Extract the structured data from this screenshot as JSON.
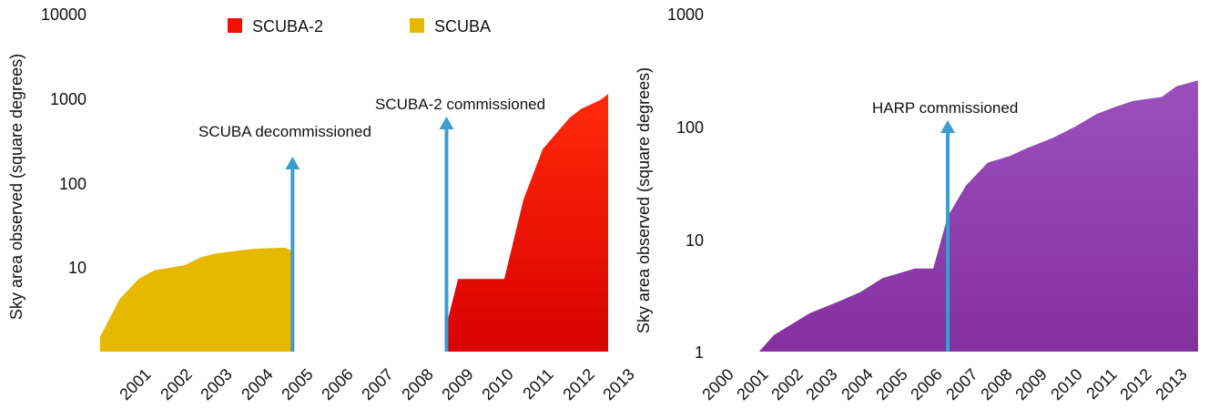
{
  "chart_data": [
    {
      "type": "area",
      "ylabel": "Sky area observed (square degrees)",
      "yscale": "log",
      "ylim": [
        1,
        10000
      ],
      "y_ticks": [
        "10",
        "100",
        "1000",
        "10000"
      ],
      "x_ticks": [
        "2001",
        "2002",
        "2003",
        "2004",
        "2005",
        "2006",
        "2007",
        "2008",
        "2009",
        "2010",
        "2011",
        "2012",
        "2013"
      ],
      "grid": false,
      "legend_position": "top-center",
      "series": [
        {
          "name": "SCUBA",
          "color": "#e6b800",
          "x": [
            2000.0,
            2000.5,
            2001.0,
            2001.4,
            2002.2,
            2002.6,
            2003.0,
            2003.5,
            2004.0,
            2004.8,
            2005.0
          ],
          "y": [
            4.5,
            11,
            18,
            22,
            25,
            30,
            33,
            35,
            37,
            38,
            35
          ]
        },
        {
          "name": "SCUBA-2",
          "color": "#ee1100",
          "x": [
            2009.0,
            2009.3,
            2010.2,
            2010.5,
            2011.0,
            2011.5,
            2012.2,
            2012.5,
            2013.0,
            2013.2
          ],
          "y": [
            6,
            18,
            18,
            18,
            120,
            400,
            850,
            1050,
            1300,
            1500
          ]
        }
      ],
      "annotations": [
        {
          "text": "SCUBA decommissioned",
          "x": 2005.0
        },
        {
          "text": "SCUBA-2 commissioned",
          "x": 2009.0
        }
      ]
    },
    {
      "type": "area",
      "ylabel": "Sky area observed (square degrees)",
      "yscale": "log",
      "ylim": [
        1,
        1000
      ],
      "y_ticks": [
        "1",
        "10",
        "100",
        "1000"
      ],
      "x_ticks": [
        "2000",
        "2001",
        "2002",
        "2003",
        "2004",
        "2005",
        "2006",
        "2007",
        "2008",
        "2009",
        "2010",
        "2011",
        "2012",
        "2013"
      ],
      "grid": false,
      "series": [
        {
          "name": "",
          "color": "#8e3aab",
          "x": [
            2000.0,
            2001.1,
            2001.5,
            2002.5,
            2003.3,
            2003.9,
            2004.5,
            2005.4,
            2005.9,
            2006.3,
            2006.8,
            2007.4,
            2008.0,
            2008.5,
            2009.2,
            2009.8,
            2010.4,
            2010.9,
            2011.4,
            2012.2,
            2012.6,
            2013.2
          ],
          "y": [
            1,
            1,
            1.4,
            2.2,
            2.8,
            3.4,
            4.5,
            5.5,
            5.5,
            16,
            30,
            48,
            55,
            65,
            80,
            100,
            130,
            150,
            170,
            185,
            230,
            260
          ]
        }
      ],
      "annotations": [
        {
          "text": "HARP commissioned",
          "x": 2006.3
        }
      ]
    }
  ]
}
